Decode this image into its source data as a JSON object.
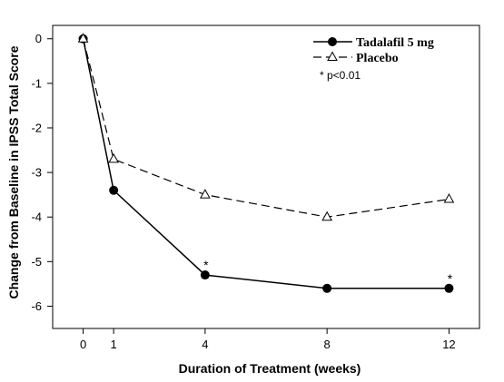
{
  "chart_data": {
    "type": "line",
    "title": "",
    "xlabel": "Duration of Treatment (weeks)",
    "ylabel": "Change from Baseline in IPSS Total Score",
    "x": [
      0,
      1,
      4,
      8,
      12
    ],
    "xlim": [
      -1,
      13
    ],
    "ylim": [
      -6.5,
      0.3
    ],
    "xticks": [
      0,
      1,
      4,
      8,
      12
    ],
    "yticks": [
      0,
      -1,
      -2,
      -3,
      -4,
      -5,
      -6
    ],
    "grid": false,
    "legend_position": "top-right",
    "series": [
      {
        "name": "Tadalafil 5 mg",
        "values": [
          0,
          -3.4,
          -5.3,
          -5.6,
          -5.6
        ],
        "style": "solid",
        "marker": "filled-circle",
        "color": "#000000"
      },
      {
        "name": "Placebo",
        "values": [
          0,
          -2.7,
          -3.5,
          -4.0,
          -3.6
        ],
        "style": "dashed",
        "marker": "open-triangle",
        "color": "#000000"
      }
    ],
    "annotations": [
      {
        "text": "*",
        "x": 4,
        "y": -5.3,
        "series": "Tadalafil 5 mg"
      },
      {
        "text": "*",
        "x": 12,
        "y": -5.6,
        "series": "Tadalafil 5 mg"
      }
    ],
    "note": "* p<0.01"
  }
}
